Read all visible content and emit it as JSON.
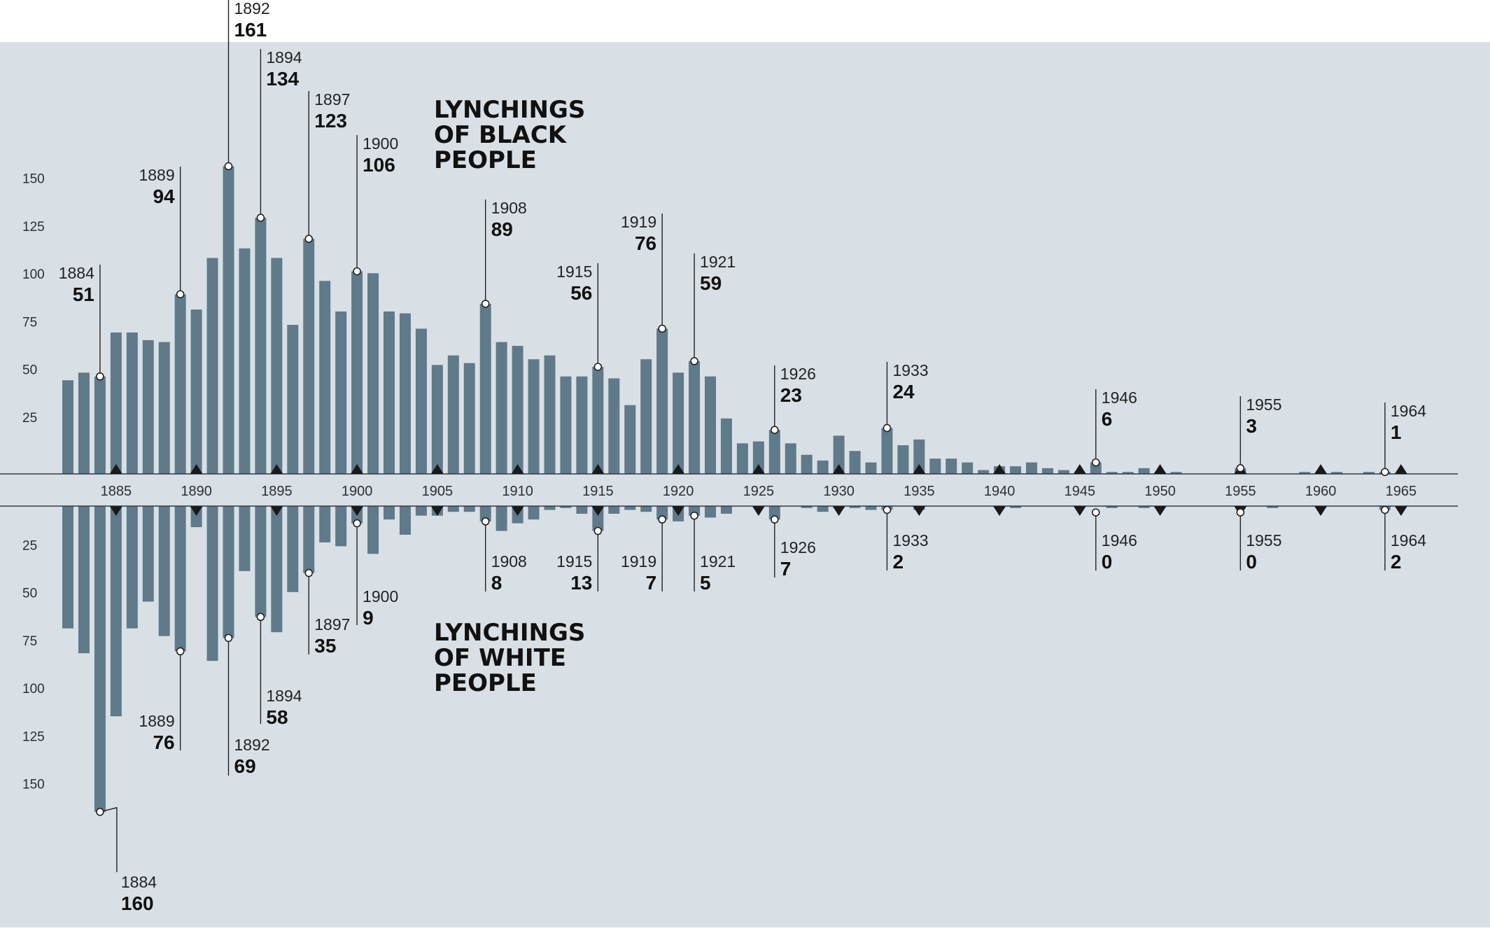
{
  "chart_data": {
    "type": "bar",
    "colors": {
      "background": "#d9e0e5",
      "bar": "#5f7a8a",
      "gridline": "#4b5560",
      "marker": "#1a1a1a",
      "text": "#111111"
    },
    "x_axis_ticks": [
      1885,
      1890,
      1895,
      1900,
      1905,
      1910,
      1915,
      1920,
      1925,
      1930,
      1935,
      1940,
      1945,
      1950,
      1955,
      1960,
      1965
    ],
    "series": [
      {
        "name": "LYNCHINGS OF BLACK PEOPLE",
        "title_lines": [
          "LYNCHINGS",
          "OF BLACK",
          "PEOPLE"
        ],
        "direction": "up",
        "y_ticks": [
          25,
          50,
          75,
          100,
          125,
          150
        ],
        "x": [
          1882,
          1883,
          1884,
          1885,
          1886,
          1887,
          1888,
          1889,
          1890,
          1891,
          1892,
          1893,
          1894,
          1895,
          1896,
          1897,
          1898,
          1899,
          1900,
          1901,
          1902,
          1903,
          1904,
          1905,
          1906,
          1907,
          1908,
          1909,
          1910,
          1911,
          1912,
          1913,
          1914,
          1915,
          1916,
          1917,
          1918,
          1919,
          1920,
          1921,
          1922,
          1923,
          1924,
          1925,
          1926,
          1927,
          1928,
          1929,
          1930,
          1931,
          1932,
          1933,
          1934,
          1935,
          1936,
          1937,
          1938,
          1939,
          1940,
          1941,
          1942,
          1943,
          1944,
          1945,
          1946,
          1947,
          1948,
          1949,
          1950,
          1951,
          1952,
          1953,
          1954,
          1955,
          1956,
          1957,
          1958,
          1959,
          1960,
          1961,
          1962,
          1963,
          1964,
          1965
        ],
        "values": [
          49,
          53,
          51,
          74,
          74,
          70,
          69,
          94,
          86,
          113,
          161,
          118,
          134,
          113,
          78,
          123,
          101,
          85,
          106,
          105,
          85,
          84,
          76,
          57,
          62,
          58,
          89,
          69,
          67,
          60,
          62,
          51,
          51,
          56,
          50,
          36,
          60,
          76,
          53,
          59,
          51,
          29,
          16,
          17,
          23,
          16,
          10,
          7,
          20,
          12,
          6,
          24,
          15,
          18,
          8,
          8,
          6,
          2,
          4,
          4,
          6,
          3,
          2,
          1,
          6,
          1,
          1,
          3,
          1,
          1,
          0,
          0,
          0,
          3,
          0,
          0,
          0,
          1,
          0,
          1,
          0,
          1,
          1,
          0
        ],
        "callouts": [
          {
            "year": 1884,
            "value": 51,
            "year_text": "1884",
            "value_text": "51"
          },
          {
            "year": 1889,
            "value": 94,
            "year_text": "1889",
            "value_text": "94"
          },
          {
            "year": 1892,
            "value": 161,
            "year_text": "1892",
            "value_text": "161"
          },
          {
            "year": 1894,
            "value": 134,
            "year_text": "1894",
            "value_text": "134"
          },
          {
            "year": 1897,
            "value": 123,
            "year_text": "1897",
            "value_text": "123"
          },
          {
            "year": 1900,
            "value": 106,
            "year_text": "1900",
            "value_text": "106"
          },
          {
            "year": 1908,
            "value": 89,
            "year_text": "1908",
            "value_text": "89"
          },
          {
            "year": 1915,
            "value": 56,
            "year_text": "1915",
            "value_text": "56"
          },
          {
            "year": 1919,
            "value": 76,
            "year_text": "1919",
            "value_text": "76"
          },
          {
            "year": 1921,
            "value": 59,
            "year_text": "1921",
            "value_text": "59"
          },
          {
            "year": 1926,
            "value": 23,
            "year_text": "1926",
            "value_text": "23"
          },
          {
            "year": 1933,
            "value": 24,
            "year_text": "1933",
            "value_text": "24"
          },
          {
            "year": 1946,
            "value": 6,
            "year_text": "1946",
            "value_text": "6"
          },
          {
            "year": 1955,
            "value": 3,
            "year_text": "1955",
            "value_text": "3"
          },
          {
            "year": 1964,
            "value": 1,
            "year_text": "1964",
            "value_text": "1"
          }
        ]
      },
      {
        "name": "LYNCHINGS OF WHITE PEOPLE",
        "title_lines": [
          "LYNCHINGS",
          "OF WHITE",
          "PEOPLE"
        ],
        "direction": "down",
        "y_ticks": [
          25,
          50,
          75,
          100,
          125,
          150
        ],
        "x": [
          1882,
          1883,
          1884,
          1885,
          1886,
          1887,
          1888,
          1889,
          1890,
          1891,
          1892,
          1893,
          1894,
          1895,
          1896,
          1897,
          1898,
          1899,
          1900,
          1901,
          1902,
          1903,
          1904,
          1905,
          1906,
          1907,
          1908,
          1909,
          1910,
          1911,
          1912,
          1913,
          1914,
          1915,
          1916,
          1917,
          1918,
          1919,
          1920,
          1921,
          1922,
          1923,
          1924,
          1925,
          1926,
          1927,
          1928,
          1929,
          1930,
          1931,
          1932,
          1933,
          1934,
          1935,
          1936,
          1937,
          1938,
          1939,
          1940,
          1941,
          1942,
          1943,
          1944,
          1945,
          1946,
          1947,
          1948,
          1949,
          1950,
          1951,
          1952,
          1953,
          1954,
          1955,
          1956,
          1957,
          1958,
          1959,
          1960,
          1961,
          1962,
          1963,
          1964,
          1965
        ],
        "values": [
          64,
          77,
          160,
          110,
          64,
          50,
          68,
          76,
          11,
          81,
          69,
          34,
          58,
          66,
          45,
          35,
          19,
          21,
          9,
          25,
          7,
          15,
          5,
          5,
          3,
          3,
          8,
          13,
          9,
          7,
          2,
          1,
          4,
          13,
          4,
          2,
          3,
          7,
          8,
          5,
          6,
          4,
          0,
          0,
          7,
          0,
          1,
          3,
          1,
          1,
          2,
          2,
          0,
          2,
          0,
          0,
          0,
          0,
          1,
          1,
          0,
          0,
          0,
          0,
          0,
          1,
          0,
          1,
          1,
          0,
          0,
          0,
          0,
          0,
          0,
          1,
          0,
          0,
          0,
          0,
          0,
          0,
          2,
          0
        ],
        "callouts": [
          {
            "year": 1884,
            "value": 160,
            "year_text": "1884",
            "value_text": "160"
          },
          {
            "year": 1889,
            "value": 76,
            "year_text": "1889",
            "value_text": "76"
          },
          {
            "year": 1892,
            "value": 69,
            "year_text": "1892",
            "value_text": "69"
          },
          {
            "year": 1894,
            "value": 58,
            "year_text": "1894",
            "value_text": "58"
          },
          {
            "year": 1897,
            "value": 35,
            "year_text": "1897",
            "value_text": "35"
          },
          {
            "year": 1900,
            "value": 9,
            "year_text": "1900",
            "value_text": "9"
          },
          {
            "year": 1908,
            "value": 8,
            "year_text": "1908",
            "value_text": "8"
          },
          {
            "year": 1915,
            "value": 13,
            "year_text": "1915",
            "value_text": "13"
          },
          {
            "year": 1919,
            "value": 7,
            "year_text": "1919",
            "value_text": "7"
          },
          {
            "year": 1921,
            "value": 5,
            "year_text": "1921",
            "value_text": "5"
          },
          {
            "year": 1926,
            "value": 7,
            "year_text": "1926",
            "value_text": "7"
          },
          {
            "year": 1933,
            "value": 2,
            "year_text": "1933",
            "value_text": "2"
          },
          {
            "year": 1946,
            "value": 0,
            "year_text": "1946",
            "value_text": "0"
          },
          {
            "year": 1955,
            "value": 0,
            "year_text": "1955",
            "value_text": "0"
          },
          {
            "year": 1964,
            "value": 2,
            "year_text": "1964",
            "value_text": "2"
          }
        ]
      }
    ]
  }
}
